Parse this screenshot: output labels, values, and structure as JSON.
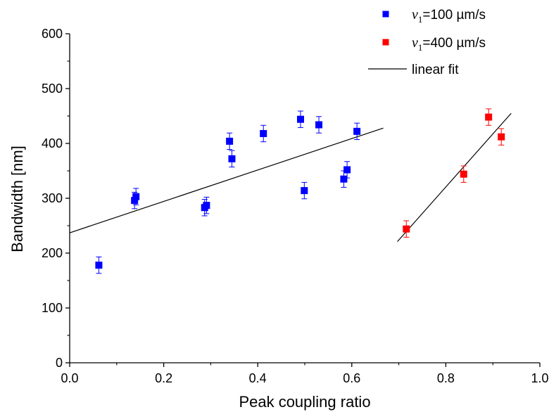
{
  "chart_data": {
    "type": "scatter",
    "xlabel": "Peak coupling ratio",
    "ylabel": "Bandwidth [nm]",
    "xlim": [
      0.0,
      1.0
    ],
    "ylim": [
      0,
      600
    ],
    "xticks": [
      "0.0",
      "0.2",
      "0.4",
      "0.6",
      "0.8",
      "1.0"
    ],
    "yticks": [
      "0",
      "100",
      "200",
      "300",
      "400",
      "500",
      "600"
    ],
    "legend_position": "top-right",
    "series": [
      {
        "legend": {
          "var": "v",
          "sub": "1",
          "text": "=100 µm/s"
        },
        "color": "#0000ff",
        "points": [
          {
            "x": 0.062,
            "y": 178,
            "err": 15
          },
          {
            "x": 0.138,
            "y": 296,
            "err": 15
          },
          {
            "x": 0.141,
            "y": 303,
            "err": 15
          },
          {
            "x": 0.287,
            "y": 283,
            "err": 15
          },
          {
            "x": 0.291,
            "y": 287,
            "err": 15
          },
          {
            "x": 0.34,
            "y": 404,
            "err": 15
          },
          {
            "x": 0.345,
            "y": 372,
            "err": 15
          },
          {
            "x": 0.412,
            "y": 418,
            "err": 15
          },
          {
            "x": 0.491,
            "y": 444,
            "err": 15
          },
          {
            "x": 0.499,
            "y": 314,
            "err": 15
          },
          {
            "x": 0.53,
            "y": 434,
            "err": 15
          },
          {
            "x": 0.583,
            "y": 335,
            "err": 15
          },
          {
            "x": 0.59,
            "y": 352,
            "err": 15
          },
          {
            "x": 0.611,
            "y": 422,
            "err": 15
          }
        ],
        "fit": {
          "x": [
            0.0,
            0.667
          ],
          "y": [
            237,
            428
          ]
        }
      },
      {
        "legend": {
          "var": "v",
          "sub": "1",
          "text": "=400 µm/s"
        },
        "color": "#ff0000",
        "points": [
          {
            "x": 0.716,
            "y": 244,
            "err": 15
          },
          {
            "x": 0.838,
            "y": 344,
            "err": 15
          },
          {
            "x": 0.891,
            "y": 448,
            "err": 15
          },
          {
            "x": 0.918,
            "y": 412,
            "err": 15
          }
        ],
        "fit": {
          "x": [
            0.697,
            0.939
          ],
          "y": [
            221,
            455
          ]
        }
      }
    ],
    "fit_legend": {
      "text": "linear fit",
      "color": "#000000"
    }
  }
}
